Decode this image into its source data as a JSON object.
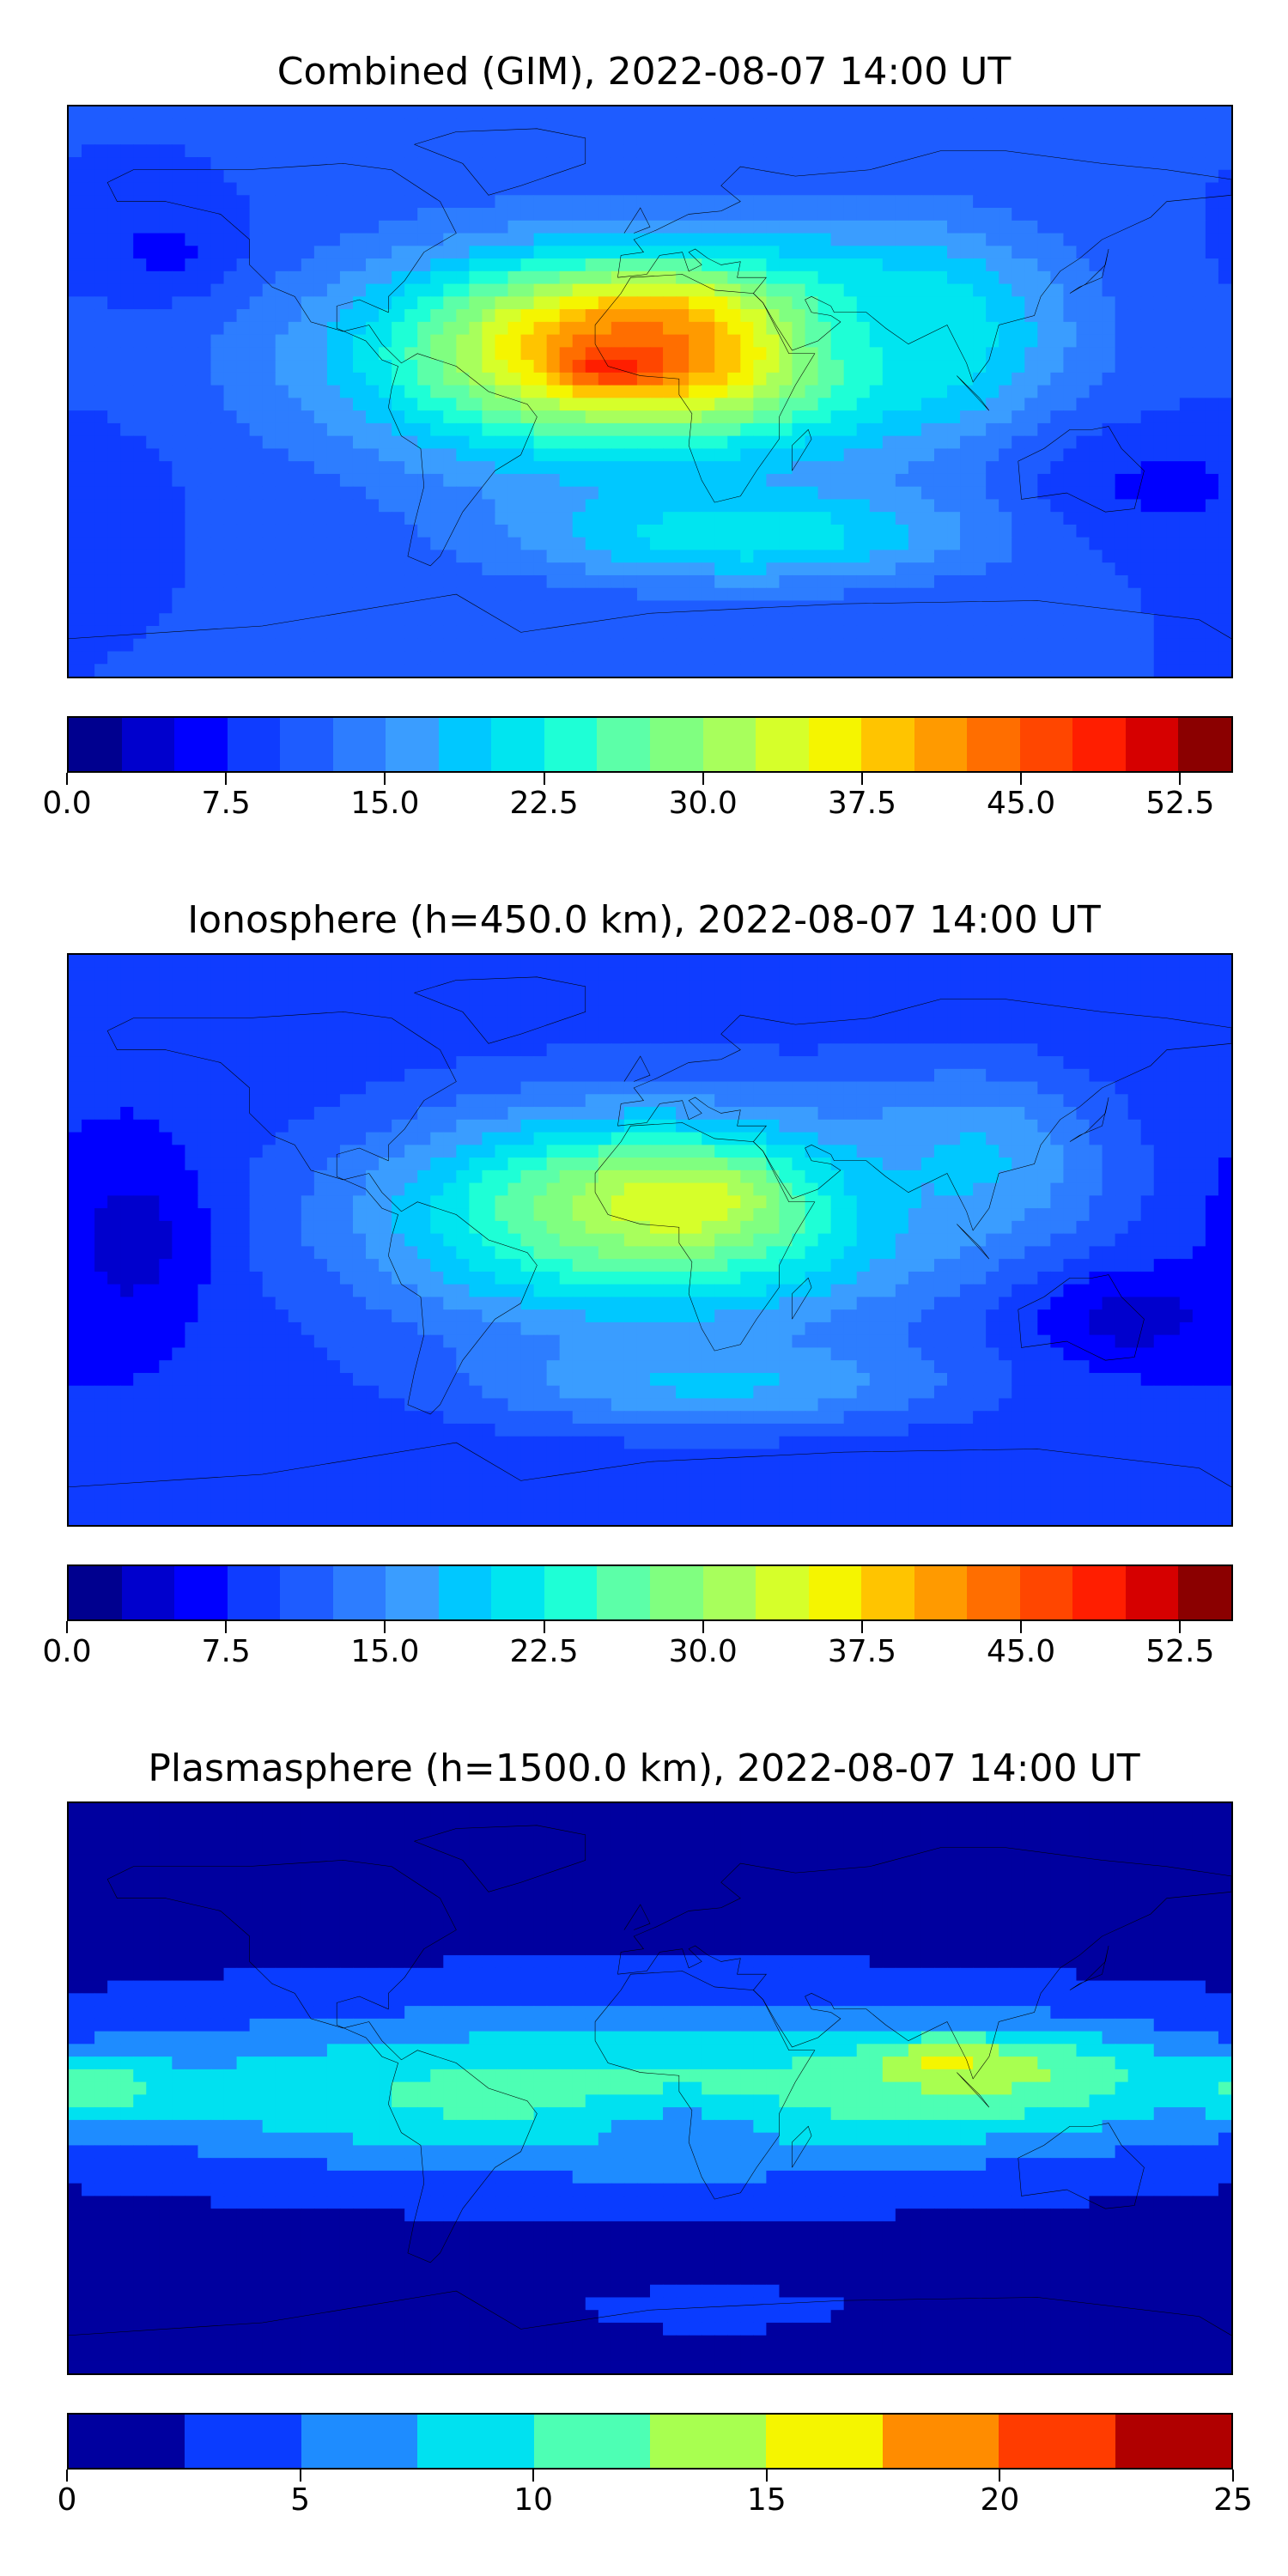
{
  "chart_data": [
    {
      "type": "heatmap",
      "title": "Combined (GIM), 2022-08-07 14:00 UT",
      "colorbar": {
        "min": 0.0,
        "max": 55.0,
        "step": 2.5,
        "ticks": [
          0.0,
          7.5,
          15.0,
          22.5,
          30.0,
          37.5,
          45.0,
          52.5
        ],
        "tick_labels": [
          "0.0",
          "7.5",
          "15.0",
          "22.5",
          "30.0",
          "37.5",
          "45.0",
          "52.5"
        ],
        "colors": [
          "#00008f",
          "#0000cd",
          "#0000ff",
          "#0f3cff",
          "#1e5cff",
          "#2d7dff",
          "#3a9dff",
          "#00c8ff",
          "#00e5f0",
          "#1effd6",
          "#5cffa8",
          "#80ff80",
          "#a8ff5c",
          "#d6ff2a",
          "#f5f500",
          "#ffc400",
          "#ff9a00",
          "#ff6e00",
          "#ff4600",
          "#ff1e00",
          "#d60000",
          "#8b0000"
        ]
      },
      "map": {
        "lon_range": [
          -180,
          180
        ],
        "lat_range": [
          -90,
          90
        ],
        "background_value": 10,
        "blobs": [
          {
            "lon": -10,
            "lat": 10,
            "rlon": 110,
            "rlat": 45,
            "value": 30
          },
          {
            "lon": 5,
            "lat": 15,
            "rlon": 75,
            "rlat": 28,
            "value": 40
          },
          {
            "lon": 10,
            "lat": 15,
            "rlon": 55,
            "rlat": 18,
            "value": 45
          },
          {
            "lon": -10,
            "lat": 8,
            "rlon": 20,
            "rlat": 8,
            "value": 50
          },
          {
            "lon": 80,
            "lat": 20,
            "rlon": 60,
            "rlat": 40,
            "value": 22
          },
          {
            "lon": 30,
            "lat": -45,
            "rlon": 90,
            "rlat": 20,
            "value": 22
          },
          {
            "lon": -150,
            "lat": 45,
            "rlon": 30,
            "rlat": 20,
            "value": 7
          },
          {
            "lon": 160,
            "lat": -30,
            "rlon": 50,
            "rlat": 25,
            "value": 7
          }
        ]
      }
    },
    {
      "type": "heatmap",
      "title": "Ionosphere  (h=450.0 km), 2022-08-07 14:00 UT",
      "colorbar": {
        "min": 0.0,
        "max": 55.0,
        "step": 2.5,
        "ticks": [
          0.0,
          7.5,
          15.0,
          22.5,
          30.0,
          37.5,
          45.0,
          52.5
        ],
        "tick_labels": [
          "0.0",
          "7.5",
          "15.0",
          "22.5",
          "30.0",
          "37.5",
          "45.0",
          "52.5"
        ],
        "colors": [
          "#00008f",
          "#0000cd",
          "#0000ff",
          "#0f3cff",
          "#1e5cff",
          "#2d7dff",
          "#3a9dff",
          "#00c8ff",
          "#00e5f0",
          "#1effd6",
          "#5cffa8",
          "#80ff80",
          "#a8ff5c",
          "#d6ff2a",
          "#f5f500",
          "#ffc400",
          "#ff9a00",
          "#ff6e00",
          "#ff4600",
          "#ff1e00",
          "#d60000",
          "#8b0000"
        ]
      },
      "map": {
        "lon_range": [
          -180,
          180
        ],
        "lat_range": [
          -90,
          90
        ],
        "background_value": 8,
        "blobs": [
          {
            "lon": 0,
            "lat": 5,
            "rlon": 120,
            "rlat": 50,
            "value": 22
          },
          {
            "lon": 0,
            "lat": 10,
            "rlon": 75,
            "rlat": 30,
            "value": 30
          },
          {
            "lon": 10,
            "lat": 12,
            "rlon": 35,
            "rlat": 15,
            "value": 35
          },
          {
            "lon": 100,
            "lat": 25,
            "rlon": 50,
            "rlat": 35,
            "value": 18
          },
          {
            "lon": 20,
            "lat": -45,
            "rlon": 90,
            "rlat": 18,
            "value": 18
          },
          {
            "lon": -160,
            "lat": 0,
            "rlon": 30,
            "rlat": 40,
            "value": 4
          },
          {
            "lon": 150,
            "lat": -25,
            "rlon": 40,
            "rlat": 20,
            "value": 4
          }
        ]
      }
    },
    {
      "type": "heatmap",
      "title": "Plasmasphere (h=1500.0 km), 2022-08-07 14:00 UT",
      "colorbar": {
        "min": 0,
        "max": 25,
        "step": 2.5,
        "ticks": [
          0,
          5,
          10,
          15,
          20,
          25
        ],
        "tick_labels": [
          "0",
          "5",
          "10",
          "15",
          "20",
          "25"
        ],
        "colors": [
          "#00009f",
          "#0a3cff",
          "#1e8cff",
          "#00e1f0",
          "#4dffb4",
          "#a8ff50",
          "#f5f500",
          "#ff8c00",
          "#ff3c00",
          "#b00000"
        ]
      },
      "map": {
        "lon_range": [
          -180,
          180
        ],
        "lat_range": [
          -90,
          90
        ],
        "background_value": 1.5,
        "blobs": [
          {
            "lon": 0,
            "lat": 0,
            "rlon": 240,
            "rlat": 38,
            "value": 8
          },
          {
            "lon": 0,
            "lat": -2,
            "rlon": 200,
            "rlat": 22,
            "value": 11
          },
          {
            "lon": 110,
            "lat": 5,
            "rlon": 55,
            "rlat": 16,
            "value": 13
          },
          {
            "lon": 90,
            "lat": 8,
            "rlon": 20,
            "rlat": 8,
            "value": 16
          },
          {
            "lon": -170,
            "lat": 0,
            "rlon": 25,
            "rlat": 12,
            "value": 12
          },
          {
            "lon": 10,
            "lat": -15,
            "rlon": 40,
            "rlat": 15,
            "value": 6
          },
          {
            "lon": 20,
            "lat": -70,
            "rlon": 60,
            "rlat": 10,
            "value": 3.5
          }
        ]
      }
    }
  ]
}
